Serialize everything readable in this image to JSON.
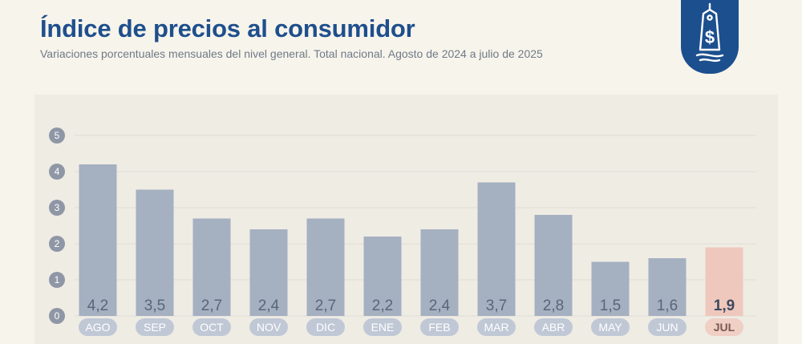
{
  "header": {
    "title": "Índice de precios al consumidor",
    "subtitle": "Variaciones porcentuales mensuales del nivel general. Total nacional. Agosto de 2024 a julio de 2025"
  },
  "badge": {
    "icon": "price-tag-dollar-icon"
  },
  "colors": {
    "title": "#1f4f8c",
    "bar": "#a5b0c1",
    "bar_highlight": "#efc8bd",
    "badge": "#1c4f8e",
    "tick_circle": "#8f97a6",
    "category_pill": "#c0c8d6",
    "category_pill_highlight": "#f0cfc5"
  },
  "chart_data": {
    "type": "bar",
    "categories": [
      "AGO",
      "SEP",
      "OCT",
      "NOV",
      "DIC",
      "ENE",
      "FEB",
      "MAR",
      "ABR",
      "MAY",
      "JUN",
      "JUL"
    ],
    "values": [
      4.2,
      3.5,
      2.7,
      2.4,
      2.7,
      2.2,
      2.4,
      3.7,
      2.8,
      1.5,
      1.6,
      1.9
    ],
    "value_labels": [
      "4,2",
      "3,5",
      "2,7",
      "2,4",
      "2,7",
      "2,2",
      "2,4",
      "3,7",
      "2,8",
      "1,5",
      "1,6",
      "1,9"
    ],
    "highlight_index": 11,
    "yticks": [
      0,
      1,
      2,
      3,
      4,
      5
    ],
    "ylim": [
      0,
      5
    ],
    "grid": true,
    "legend": "none"
  }
}
